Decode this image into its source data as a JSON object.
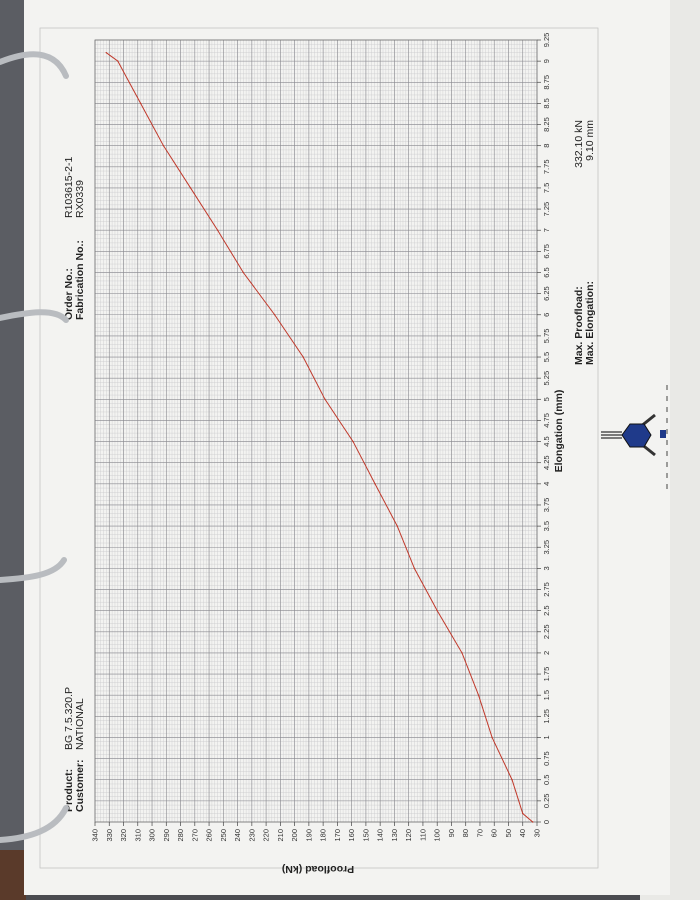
{
  "header": {
    "product_label": "Product:",
    "product_value": "BG 7.5.320.P",
    "customer_label": "Customer:",
    "customer_value": "NATIONAL",
    "order_label": "Order No.:",
    "order_value": "R103615-2-1",
    "fabrication_label": "Fabrication No.:",
    "fabrication_value": "RX0339"
  },
  "summary": {
    "max_proofload_label": "Max. Proofload:",
    "max_proofload_value": "332.10 kN",
    "max_elongation_label": "Max. Elongation:",
    "max_elongation_value": "9.10 mm"
  },
  "colors": {
    "curve": "#c0392b",
    "grid_major": "#8a8a90",
    "grid_minor": "#c9c9cc",
    "paper": "#f3f3f1",
    "logo": "#1f3a8a"
  },
  "logo": {
    "icon": "company-logo-icon"
  },
  "chart_data": {
    "type": "line",
    "title": "",
    "xlabel": "Elongation (mm)",
    "ylabel": "Proofload (kN)",
    "xlim": [
      0,
      9.25
    ],
    "ylim": [
      30,
      340
    ],
    "grid": true,
    "orientation": "page rotated 90° counter-clockwise",
    "x_ticks": [
      "0",
      "0.25",
      "0.5",
      "0.75",
      "1",
      "1.25",
      "1.5",
      "1.75",
      "2",
      "2.25",
      "2.5",
      "2.75",
      "3",
      "3.25",
      "3.5",
      "3.75",
      "4",
      "4.25",
      "4.5",
      "4.75",
      "5",
      "5.25",
      "5.5",
      "5.75",
      "6",
      "6.25",
      "6.5",
      "6.75",
      "7",
      "7.25",
      "7.5",
      "7.75",
      "8",
      "8.25",
      "8.5",
      "8.75",
      "9",
      "9.25"
    ],
    "y_ticks": [
      "30",
      "40",
      "50",
      "60",
      "70",
      "80",
      "90",
      "100",
      "110",
      "120",
      "130",
      "140",
      "150",
      "160",
      "170",
      "180",
      "190",
      "200",
      "210",
      "220",
      "230",
      "240",
      "250",
      "260",
      "270",
      "280",
      "290",
      "300",
      "310",
      "320",
      "330",
      "340"
    ],
    "series": [
      {
        "x": [
          0,
          0.1,
          0.5,
          1,
          1.5,
          2,
          2.5,
          3,
          3.5,
          4,
          4.5,
          5,
          5.5,
          6,
          6.5,
          7,
          7.5,
          8,
          8.5,
          9,
          9.1
        ],
        "y": [
          33,
          40,
          47.5,
          61.5,
          71,
          82.6,
          100,
          116,
          128,
          143.6,
          159,
          178.7,
          194,
          214,
          236,
          254,
          273,
          292,
          308,
          324,
          332.1
        ]
      }
    ]
  }
}
